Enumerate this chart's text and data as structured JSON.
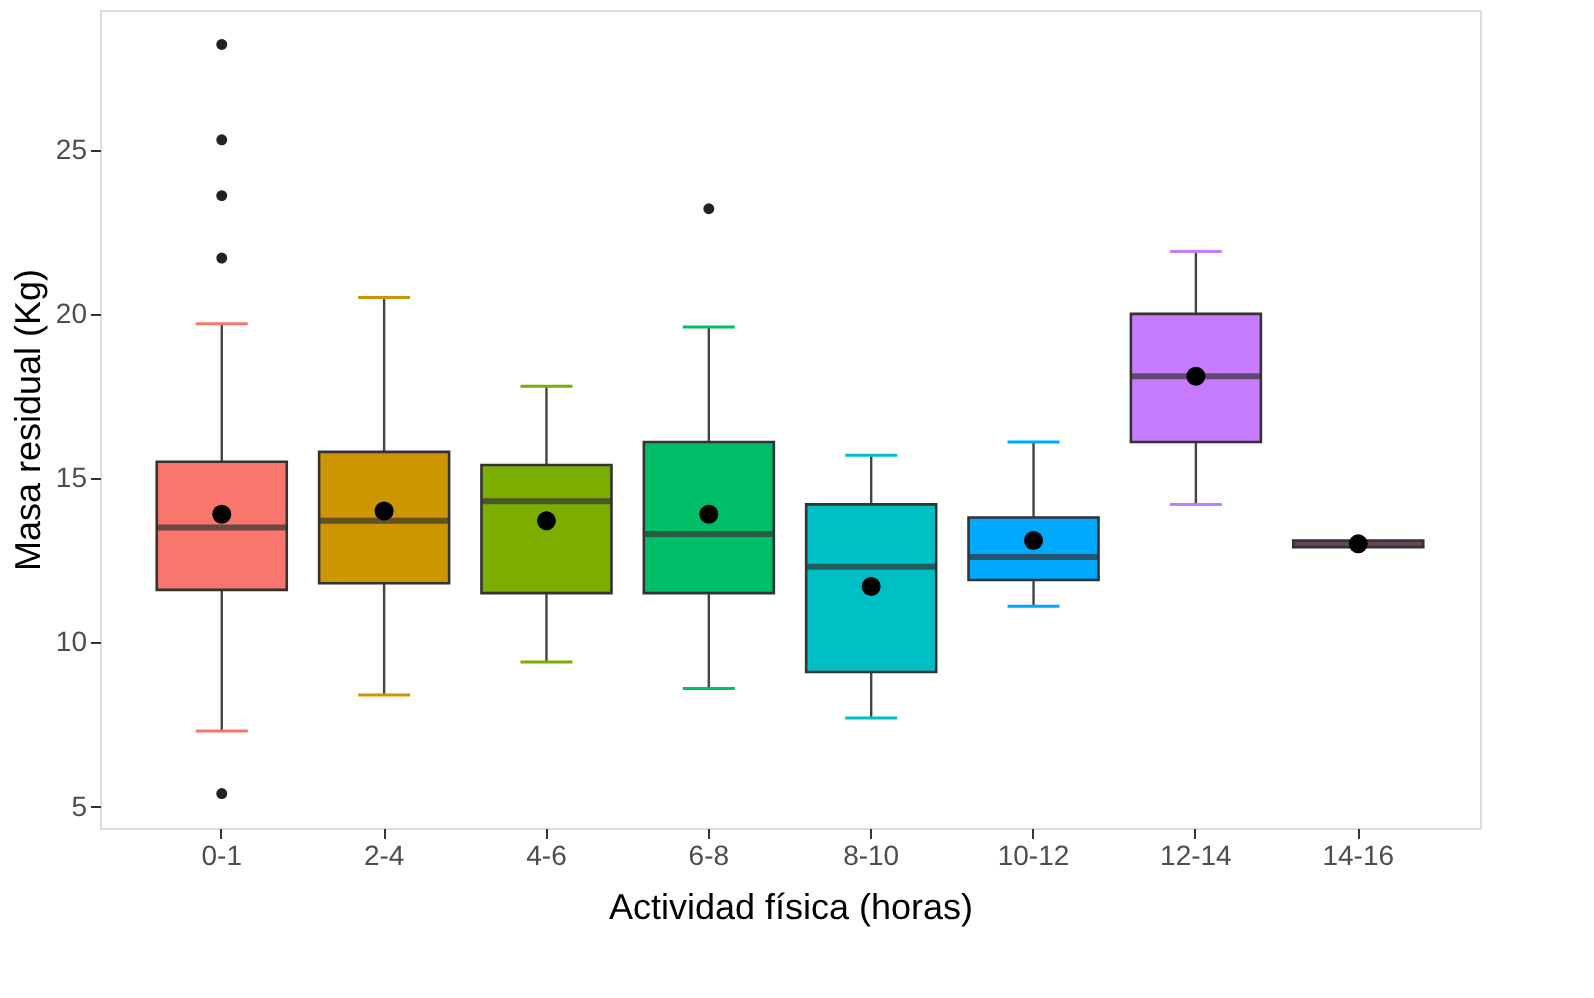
{
  "chart_data": {
    "type": "box",
    "xlabel": "Actividad física (horas)",
    "ylabel": "Masa residual (Kg)",
    "categories": [
      "0-1",
      "2-4",
      "4-6",
      "6-8",
      "8-10",
      "10-12",
      "12-14",
      "14-16"
    ],
    "colors": [
      "#F8766D",
      "#CD9600",
      "#7CAE00",
      "#00BE67",
      "#00BFC4",
      "#00A9FF",
      "#C77CFF",
      "#FF61CC"
    ],
    "boxes": [
      {
        "low": 7.3,
        "q1": 11.6,
        "median": 13.5,
        "q3": 15.5,
        "high": 19.7,
        "mean": 13.9,
        "outliers": [
          28.2,
          25.3,
          23.6,
          21.7,
          5.4
        ]
      },
      {
        "low": 8.4,
        "q1": 11.8,
        "median": 13.7,
        "q3": 15.8,
        "high": 20.5,
        "mean": 14.0
      },
      {
        "low": 9.4,
        "q1": 11.5,
        "median": 14.3,
        "q3": 15.4,
        "high": 17.8,
        "mean": 13.7
      },
      {
        "low": 8.6,
        "q1": 11.5,
        "median": 13.3,
        "q3": 16.1,
        "high": 19.6,
        "mean": 13.9,
        "outliers": [
          23.2
        ]
      },
      {
        "low": 7.7,
        "q1": 9.1,
        "median": 12.3,
        "q3": 14.2,
        "high": 15.7,
        "mean": 11.7
      },
      {
        "low": 11.1,
        "q1": 11.9,
        "median": 12.6,
        "q3": 13.8,
        "high": 16.1,
        "mean": 13.1
      },
      {
        "low": 14.2,
        "q1": 16.1,
        "median": 18.1,
        "q3": 20.0,
        "high": 21.9,
        "mean": 18.1
      },
      {
        "low": 12.9,
        "q1": 12.9,
        "median": 13.0,
        "q3": 13.1,
        "high": 13.1,
        "mean": 13.0
      }
    ],
    "ylim": [
      4.35,
      29.25
    ],
    "yticks": [
      5,
      10,
      15,
      20,
      25
    ]
  }
}
